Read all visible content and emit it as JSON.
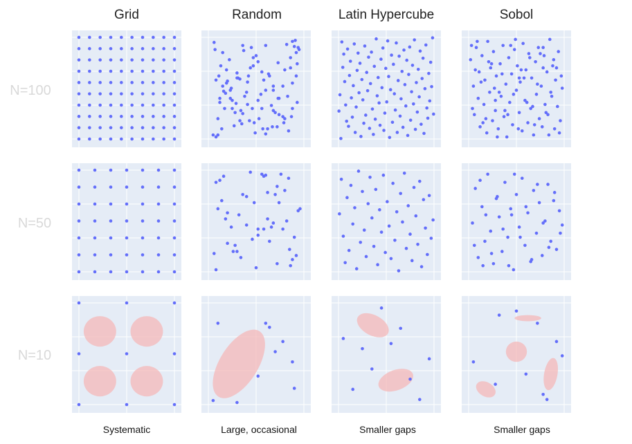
{
  "columns": [
    "Grid",
    "Random",
    "Latin Hypercube",
    "Sobol"
  ],
  "rows": [
    "N=100",
    "N=50",
    "N=10"
  ],
  "captions": [
    "Systematic",
    "Large, occasional",
    "Smaller gaps",
    "Smaller gaps"
  ],
  "colors": {
    "background": "#e5ecf6",
    "point": "#636efa",
    "gap": "#f4b8b8",
    "row_label": "#d9d9d9"
  },
  "chart_data": {
    "type": "scatter",
    "xlim": [
      0,
      1
    ],
    "ylim": [
      0,
      1
    ],
    "grid": true,
    "panels": [
      {
        "row": "N=100",
        "column": "Grid",
        "points": "10x10 regular lattice"
      },
      {
        "row": "N=100",
        "column": "Random",
        "x": [
          0.07,
          0.08,
          0.13,
          0.1,
          0.15,
          0.18,
          0.22,
          0.25,
          0.3,
          0.33,
          0.37,
          0.41,
          0.46,
          0.5,
          0.55,
          0.6,
          0.64,
          0.68,
          0.73,
          0.78,
          0.82,
          0.86,
          0.88,
          0.9,
          0.91,
          0.92,
          0.94,
          0.93,
          0.88,
          0.83,
          0.78,
          0.72,
          0.66,
          0.6,
          0.56,
          0.52,
          0.48,
          0.44,
          0.4,
          0.36,
          0.31,
          0.27,
          0.23,
          0.19,
          0.15,
          0.12,
          0.1,
          0.14,
          0.19,
          0.24,
          0.29,
          0.34,
          0.38,
          0.42,
          0.47,
          0.52,
          0.58,
          0.63,
          0.68,
          0.74,
          0.79,
          0.84,
          0.88,
          0.92,
          0.86,
          0.8,
          0.74,
          0.68,
          0.62,
          0.56,
          0.49,
          0.43,
          0.36,
          0.3,
          0.23,
          0.17,
          0.11,
          0.08,
          0.05,
          0.06,
          0.12,
          0.2,
          0.28,
          0.35,
          0.41,
          0.47,
          0.53,
          0.6,
          0.67,
          0.73,
          0.8,
          0.87,
          0.93,
          0.95,
          0.16,
          0.25,
          0.33,
          0.45,
          0.57,
          0.7
        ],
        "y": [
          0.88,
          0.58,
          0.72,
          0.04,
          0.52,
          0.45,
          0.78,
          0.3,
          0.65,
          0.18,
          0.87,
          0.56,
          0.3,
          0.82,
          0.44,
          0.92,
          0.62,
          0.28,
          0.75,
          0.52,
          0.93,
          0.8,
          0.96,
          0.91,
          0.97,
          0.85,
          0.9,
          0.74,
          0.55,
          0.42,
          0.22,
          0.12,
          0.33,
          0.48,
          0.66,
          0.38,
          0.16,
          0.7,
          0.46,
          0.25,
          0.6,
          0.13,
          0.4,
          0.68,
          0.85,
          0.36,
          0.2,
          0.1,
          0.55,
          0.5,
          0.35,
          0.28,
          0.42,
          0.62,
          0.72,
          0.76,
          0.58,
          0.64,
          0.48,
          0.24,
          0.16,
          0.08,
          0.3,
          0.62,
          0.7,
          0.2,
          0.4,
          0.52,
          0.1,
          0.3,
          0.06,
          0.18,
          0.92,
          0.6,
          0.48,
          0.3,
          0.62,
          0.02,
          0.04,
          0.95,
          0.4,
          0.57,
          0.26,
          0.15,
          0.34,
          0.8,
          0.2,
          0.05,
          0.12,
          0.4,
          0.68,
          0.22,
          0.36,
          0.88,
          0.47,
          0.38,
          0.59,
          0.9,
          0.1,
          0.26
        ]
      },
      {
        "row": "N=100",
        "column": "Latin Hypercube",
        "x": [
          0.005,
          0.015,
          0.025,
          0.035,
          0.045,
          0.055,
          0.065,
          0.075,
          0.085,
          0.095,
          0.105,
          0.115,
          0.125,
          0.135,
          0.145,
          0.155,
          0.165,
          0.175,
          0.185,
          0.195,
          0.205,
          0.215,
          0.225,
          0.235,
          0.245,
          0.255,
          0.265,
          0.275,
          0.285,
          0.295,
          0.305,
          0.315,
          0.325,
          0.335,
          0.345,
          0.355,
          0.365,
          0.375,
          0.385,
          0.395,
          0.405,
          0.415,
          0.425,
          0.435,
          0.445,
          0.455,
          0.465,
          0.475,
          0.485,
          0.495,
          0.505,
          0.515,
          0.525,
          0.535,
          0.545,
          0.555,
          0.565,
          0.575,
          0.585,
          0.595,
          0.605,
          0.615,
          0.625,
          0.635,
          0.645,
          0.655,
          0.665,
          0.675,
          0.685,
          0.695,
          0.705,
          0.715,
          0.725,
          0.735,
          0.745,
          0.755,
          0.765,
          0.775,
          0.785,
          0.795,
          0.805,
          0.815,
          0.825,
          0.835,
          0.845,
          0.855,
          0.865,
          0.875,
          0.885,
          0.895,
          0.905,
          0.915,
          0.925,
          0.935,
          0.945,
          0.955,
          0.965,
          0.975,
          0.985,
          0.995
        ],
        "y": [
          0.275,
          0.435,
          0.005,
          0.955,
          0.705,
          0.835,
          0.565,
          0.335,
          0.175,
          0.885,
          0.125,
          0.625,
          0.765,
          0.405,
          0.215,
          0.525,
          0.935,
          0.065,
          0.315,
          0.675,
          0.845,
          0.455,
          0.745,
          0.025,
          0.585,
          0.385,
          0.155,
          0.915,
          0.235,
          0.655,
          0.475,
          0.805,
          0.105,
          0.545,
          0.855,
          0.295,
          0.045,
          0.715,
          0.195,
          0.985,
          0.425,
          0.605,
          0.355,
          0.135,
          0.785,
          0.505,
          0.895,
          0.085,
          0.255,
          0.695,
          0.365,
          0.965,
          0.615,
          0.015,
          0.485,
          0.825,
          0.165,
          0.735,
          0.445,
          0.285,
          0.945,
          0.065,
          0.575,
          0.815,
          0.225,
          0.395,
          0.665,
          0.115,
          0.875,
          0.535,
          0.325,
          0.775,
          0.035,
          0.635,
          0.905,
          0.185,
          0.465,
          0.725,
          0.345,
          0.975,
          0.095,
          0.555,
          0.265,
          0.685,
          0.415,
          0.865,
          0.145,
          0.595,
          0.795,
          0.055,
          0.495,
          0.925,
          0.305,
          0.205,
          0.645,
          0.375,
          0.755,
          0.515,
          0.995,
          0.245
        ]
      },
      {
        "row": "N=100",
        "column": "Sobol",
        "x": [
          0.02,
          0.05,
          0.06,
          0.08,
          0.1,
          0.11,
          0.12,
          0.14,
          0.16,
          0.17,
          0.19,
          0.2,
          0.22,
          0.23,
          0.25,
          0.26,
          0.28,
          0.29,
          0.31,
          0.33,
          0.34,
          0.36,
          0.37,
          0.39,
          0.4,
          0.42,
          0.43,
          0.45,
          0.46,
          0.48,
          0.5,
          0.51,
          0.53,
          0.54,
          0.56,
          0.57,
          0.59,
          0.6,
          0.62,
          0.63,
          0.65,
          0.66,
          0.68,
          0.7,
          0.71,
          0.73,
          0.74,
          0.76,
          0.77,
          0.79,
          0.8,
          0.82,
          0.83,
          0.85,
          0.86,
          0.88,
          0.9,
          0.91,
          0.93,
          0.94,
          0.96,
          0.97,
          0.04,
          0.09,
          0.13,
          0.18,
          0.21,
          0.27,
          0.3,
          0.35,
          0.38,
          0.44,
          0.47,
          0.52,
          0.55,
          0.61,
          0.64,
          0.69,
          0.72,
          0.78,
          0.81,
          0.87,
          0.89,
          0.95,
          0.98,
          0.07,
          0.15,
          0.24,
          0.32,
          0.41,
          0.49,
          0.58,
          0.67,
          0.75,
          0.84,
          0.92,
          0.03,
          0.28,
          0.53,
          0.78
        ],
        "y": [
          0.78,
          0.52,
          0.24,
          0.9,
          0.4,
          0.66,
          0.12,
          0.82,
          0.34,
          0.58,
          0.06,
          0.96,
          0.46,
          0.7,
          0.18,
          0.86,
          0.28,
          0.62,
          0.1,
          0.74,
          0.42,
          0.92,
          0.22,
          0.54,
          0.02,
          0.8,
          0.36,
          0.64,
          0.14,
          0.88,
          0.48,
          0.72,
          0.26,
          0.56,
          0.08,
          0.94,
          0.38,
          0.68,
          0.16,
          0.84,
          0.3,
          0.6,
          0.04,
          0.76,
          0.44,
          0.9,
          0.2,
          0.52,
          0.12,
          0.82,
          0.34,
          0.66,
          0.24,
          0.98,
          0.46,
          0.72,
          0.1,
          0.58,
          0.32,
          0.86,
          0.18,
          0.62,
          0.3,
          0.96,
          0.56,
          0.2,
          0.76,
          0.5,
          0.02,
          0.64,
          0.28,
          0.92,
          0.44,
          0.1,
          0.68,
          0.36,
          0.8,
          0.14,
          0.54,
          0.9,
          0.26,
          0.42,
          0.78,
          0.06,
          0.5,
          0.68,
          0.16,
          0.74,
          0.46,
          0.24,
          0.98,
          0.6,
          0.32,
          0.84,
          0.04,
          0.7,
          0.92,
          0.38,
          0.6,
          0.7
        ]
      },
      {
        "row": "N=50",
        "column": "Grid",
        "points": "7x7 regular lattice"
      },
      {
        "row": "N=50",
        "column": "Random",
        "x": [
          0.08,
          0.12,
          0.16,
          0.2,
          0.1,
          0.18,
          0.24,
          0.28,
          0.32,
          0.36,
          0.4,
          0.44,
          0.48,
          0.52,
          0.56,
          0.58,
          0.6,
          0.62,
          0.66,
          0.7,
          0.72,
          0.76,
          0.8,
          0.84,
          0.86,
          0.88,
          0.92,
          0.96,
          0.9,
          0.85,
          0.78,
          0.72,
          0.68,
          0.62,
          0.58,
          0.52,
          0.46,
          0.4,
          0.34,
          0.3,
          0.26,
          0.2,
          0.14,
          0.08,
          0.06,
          0.5,
          0.64,
          0.74,
          0.82,
          0.94
        ],
        "y": [
          0.88,
          0.9,
          0.94,
          0.58,
          0.62,
          0.52,
          0.44,
          0.26,
          0.56,
          0.76,
          0.74,
          0.98,
          0.68,
          0.36,
          0.96,
          0.94,
          0.95,
          0.78,
          0.44,
          0.76,
          0.84,
          0.96,
          0.8,
          0.92,
          0.06,
          0.12,
          0.16,
          0.62,
          0.34,
          0.22,
          0.42,
          0.08,
          0.48,
          0.52,
          0.42,
          0.42,
          0.32,
          0.46,
          0.14,
          0.2,
          0.2,
          0.28,
          0.7,
          0.02,
          0.18,
          0.04,
          0.3,
          0.68,
          0.5,
          0.6
        ]
      },
      {
        "row": "N=50",
        "column": "Latin Hypercube",
        "x": [
          0.01,
          0.03,
          0.05,
          0.07,
          0.09,
          0.11,
          0.13,
          0.15,
          0.17,
          0.19,
          0.21,
          0.23,
          0.25,
          0.27,
          0.29,
          0.31,
          0.33,
          0.35,
          0.37,
          0.39,
          0.41,
          0.43,
          0.45,
          0.47,
          0.49,
          0.51,
          0.53,
          0.55,
          0.57,
          0.59,
          0.61,
          0.63,
          0.65,
          0.67,
          0.69,
          0.71,
          0.73,
          0.75,
          0.77,
          0.79,
          0.81,
          0.83,
          0.85,
          0.87,
          0.89,
          0.91,
          0.93,
          0.95,
          0.97,
          0.99
        ],
        "y": [
          0.57,
          0.91,
          0.35,
          0.09,
          0.73,
          0.21,
          0.85,
          0.47,
          0.63,
          0.03,
          0.99,
          0.29,
          0.79,
          0.41,
          0.15,
          0.67,
          0.93,
          0.53,
          0.25,
          0.81,
          0.07,
          0.61,
          0.39,
          0.95,
          0.19,
          0.69,
          0.45,
          0.13,
          0.87,
          0.31,
          0.59,
          0.01,
          0.77,
          0.49,
          0.97,
          0.23,
          0.65,
          0.37,
          0.11,
          0.83,
          0.55,
          0.27,
          0.89,
          0.05,
          0.71,
          0.43,
          0.17,
          0.75,
          0.33,
          0.51
        ]
      },
      {
        "row": "N=50",
        "column": "Sobol",
        "x": [
          0.04,
          0.07,
          0.1,
          0.14,
          0.17,
          0.2,
          0.23,
          0.26,
          0.29,
          0.32,
          0.35,
          0.38,
          0.41,
          0.44,
          0.47,
          0.5,
          0.53,
          0.56,
          0.59,
          0.62,
          0.65,
          0.68,
          0.71,
          0.74,
          0.77,
          0.8,
          0.83,
          0.86,
          0.89,
          0.92,
          0.95,
          0.98,
          0.06,
          0.12,
          0.18,
          0.24,
          0.3,
          0.36,
          0.42,
          0.48,
          0.54,
          0.6,
          0.66,
          0.72,
          0.78,
          0.84,
          0.9,
          0.96,
          0.15,
          0.45
        ],
        "y": [
          0.48,
          0.82,
          0.14,
          0.64,
          0.3,
          0.96,
          0.4,
          0.08,
          0.72,
          0.54,
          0.2,
          0.88,
          0.34,
          0.62,
          0.02,
          0.76,
          0.44,
          0.92,
          0.26,
          0.58,
          0.1,
          0.8,
          0.38,
          0.68,
          0.16,
          0.5,
          0.86,
          0.3,
          0.7,
          0.22,
          0.6,
          0.46,
          0.26,
          0.9,
          0.56,
          0.18,
          0.74,
          0.42,
          0.06,
          0.96,
          0.34,
          0.64,
          0.12,
          0.86,
          0.48,
          0.24,
          0.78,
          0.38,
          0.06,
          0.56
        ]
      },
      {
        "row": "N=10",
        "column": "Grid",
        "points": "3x3 regular lattice"
      },
      {
        "row": "N=10",
        "column": "Random",
        "x": [
          0.1,
          0.6,
          0.64,
          0.7,
          0.78,
          0.88,
          0.52,
          0.05,
          0.3,
          0.9
        ],
        "y": [
          0.8,
          0.8,
          0.76,
          0.52,
          0.62,
          0.42,
          0.28,
          0.04,
          0.02,
          0.16
        ]
      },
      {
        "row": "N=10",
        "column": "Latin Hypercube",
        "x": [
          0.05,
          0.15,
          0.25,
          0.35,
          0.45,
          0.55,
          0.65,
          0.75,
          0.85,
          0.95
        ],
        "y": [
          0.65,
          0.15,
          0.55,
          0.35,
          0.95,
          0.6,
          0.75,
          0.25,
          0.05,
          0.45
        ]
      },
      {
        "row": "N=10",
        "column": "Sobol",
        "x": [
          0.05,
          0.28,
          0.32,
          0.5,
          0.6,
          0.72,
          0.78,
          0.82,
          0.92,
          0.98
        ],
        "y": [
          0.42,
          0.2,
          0.88,
          0.92,
          0.3,
          0.8,
          0.1,
          0.05,
          0.62,
          0.48
        ]
      }
    ]
  }
}
